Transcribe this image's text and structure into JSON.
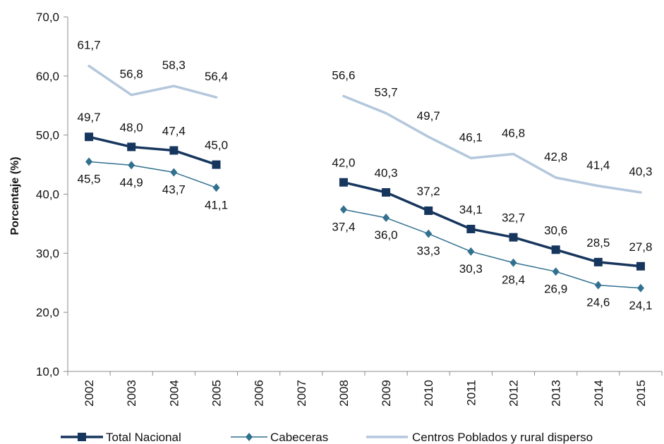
{
  "chart_data": {
    "type": "line",
    "ylabel": "Porcentaje (%)",
    "ylim": [
      10,
      70
    ],
    "yticks": [
      "10,0",
      "20,0",
      "30,0",
      "40,0",
      "50,0",
      "60,0",
      "70,0"
    ],
    "categories": [
      "2002",
      "2003",
      "2004",
      "2005",
      "2006",
      "2007",
      "2008",
      "2009",
      "2010",
      "2011",
      "2012",
      "2013",
      "2014",
      "2015"
    ],
    "legend_position": "bottom",
    "grid": false,
    "series": [
      {
        "name": "Total Nacional",
        "color": "#17365d",
        "marker": "square",
        "values": [
          49.7,
          48.0,
          47.4,
          45.0,
          null,
          null,
          42.0,
          40.3,
          37.2,
          34.1,
          32.7,
          30.6,
          28.5,
          27.8
        ],
        "labels": [
          "49,7",
          "48,0",
          "47,4",
          "45,0",
          null,
          null,
          "42,0",
          "40,3",
          "37,2",
          "34,1",
          "32,7",
          "30,6",
          "28,5",
          "27,8"
        ]
      },
      {
        "name": "Cabeceras",
        "color": "#31708f",
        "marker": "diamond",
        "values": [
          45.5,
          44.9,
          43.7,
          41.1,
          null,
          null,
          37.4,
          36.0,
          33.3,
          30.3,
          28.4,
          26.9,
          24.6,
          24.1
        ],
        "labels": [
          "45,5",
          "44,9",
          "43,7",
          "41,1",
          null,
          null,
          "37,4",
          "36,0",
          "33,3",
          "30,3",
          "28,4",
          "26,9",
          "24,6",
          "24,1"
        ]
      },
      {
        "name": "Centros Poblados y rural disperso",
        "color": "#b4c7dc",
        "marker": "none",
        "values": [
          61.7,
          56.8,
          58.3,
          56.4,
          null,
          null,
          56.6,
          53.7,
          49.7,
          46.1,
          46.8,
          42.8,
          41.4,
          40.3
        ],
        "labels": [
          "61,7",
          "56,8",
          "58,3",
          "56,4",
          null,
          null,
          "56,6",
          "53,7",
          "49,7",
          "46,1",
          "46,8",
          "42,8",
          "41,4",
          "40,3"
        ]
      }
    ]
  }
}
